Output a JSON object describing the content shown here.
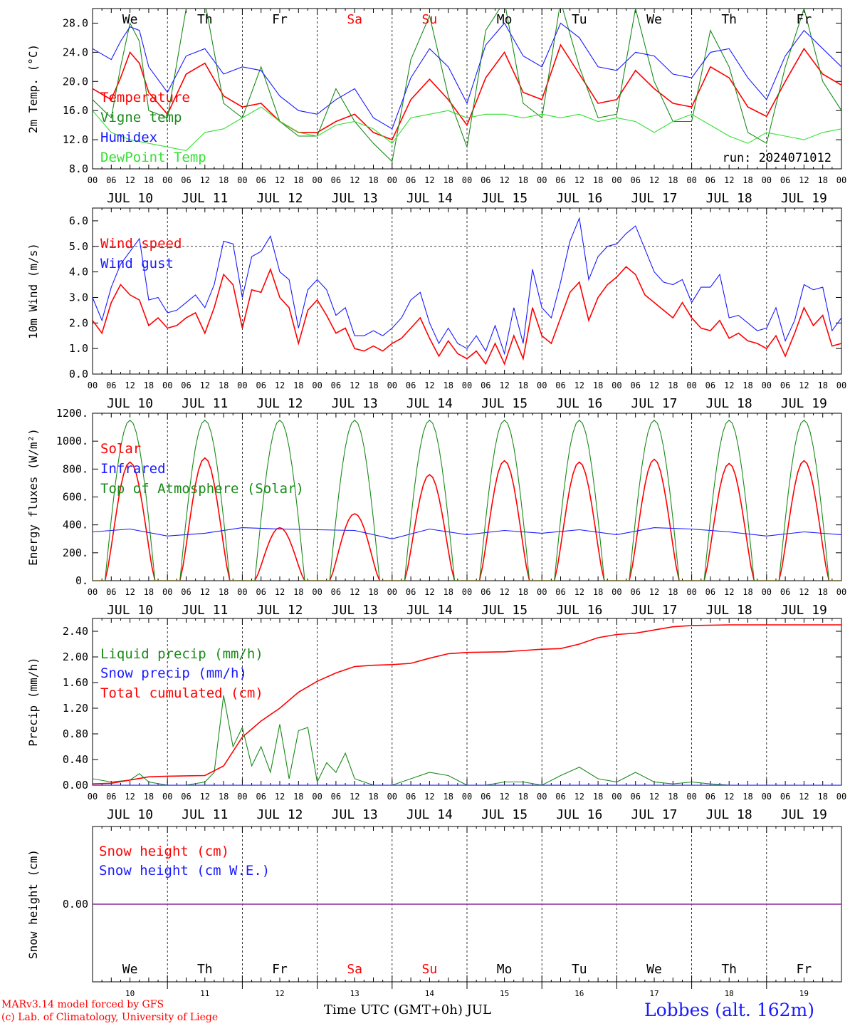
{
  "run_label": "run: 2024071012",
  "day_names": [
    "We",
    "Th",
    "Fr",
    "Sa",
    "Su",
    "Mo",
    "Tu",
    "We",
    "Th",
    "Fr"
  ],
  "weekend_days": [
    3,
    4
  ],
  "date_labels": [
    "JUL 10",
    "JUL 11",
    "JUL 12",
    "JUL 13",
    "JUL 14",
    "JUL 15",
    "JUL 16",
    "JUL 17",
    "JUL 18",
    "JUL 19"
  ],
  "day_numbers": [
    "10",
    "11",
    "12",
    "13",
    "14",
    "15",
    "16",
    "17",
    "18",
    "19"
  ],
  "hour_labels": [
    "00",
    "06",
    "12",
    "18"
  ],
  "footer": {
    "credit1": "MARv3.14 model forced by GFS",
    "credit2": "(c) Lab. of Climatology, University of Liege",
    "xaxis_title": "Time UTC (GMT+0h) JUL",
    "station": "Lobbes (alt. 162m)"
  },
  "colors": {
    "red": "#ff0000",
    "green": "#1a8a1a",
    "blue": "#1a1aff",
    "lightgreen": "#33e033",
    "purple": "#8c2a9c"
  },
  "chart_data": [
    {
      "type": "line",
      "ylabel": "2m Temp. (°C)",
      "ylim": [
        8,
        30
      ],
      "yticks": [
        "8.0",
        "12.0",
        "16.0",
        "20.0",
        "24.0",
        "28.0"
      ],
      "ytick_values": [
        8,
        12,
        16,
        20,
        24,
        28
      ],
      "x_unit": "hours since JUL 10 00 UTC",
      "series": [
        {
          "name": "Temperature",
          "color": "red",
          "x": [
            0,
            6,
            9,
            12,
            15,
            18,
            24,
            30,
            36,
            42,
            48,
            54,
            60,
            66,
            72,
            78,
            84,
            90,
            96,
            102,
            108,
            114,
            120,
            126,
            132,
            138,
            144,
            150,
            156,
            162,
            168,
            174,
            180,
            186,
            192,
            198,
            204,
            210,
            216,
            222,
            228,
            234,
            240
          ],
          "y": [
            19.0,
            17.5,
            20.5,
            24.0,
            22.5,
            18.5,
            15.5,
            21.0,
            22.5,
            18.0,
            16.5,
            17.0,
            14.5,
            13.0,
            13.0,
            14.5,
            15.5,
            13.0,
            12.0,
            17.5,
            20.3,
            17.5,
            14.0,
            20.5,
            24.0,
            18.5,
            17.5,
            25.0,
            21.0,
            17.0,
            17.5,
            21.5,
            19.0,
            17.0,
            16.5,
            22.0,
            20.5,
            16.5,
            15.2,
            20.0,
            24.5,
            21.0,
            19.5
          ]
        },
        {
          "name": "Vigne temp",
          "color": "green",
          "x": [
            0,
            6,
            9,
            12,
            15,
            18,
            24,
            30,
            36,
            42,
            48,
            54,
            60,
            66,
            72,
            78,
            84,
            90,
            96,
            102,
            108,
            114,
            120,
            126,
            132,
            138,
            144,
            150,
            156,
            162,
            168,
            174,
            180,
            186,
            192,
            198,
            204,
            210,
            216,
            222,
            228,
            234,
            240
          ],
          "y": [
            17.5,
            15.0,
            22.0,
            28.0,
            25.5,
            16.0,
            15.0,
            30.0,
            31.0,
            17.0,
            15.0,
            22.0,
            14.5,
            12.5,
            12.5,
            19.0,
            14.5,
            11.5,
            9.0,
            23.0,
            29.0,
            18.0,
            11.0,
            27.0,
            31.0,
            17.0,
            15.0,
            31.0,
            22.0,
            15.0,
            15.5,
            30.0,
            20.0,
            14.5,
            14.5,
            27.0,
            22.0,
            13.0,
            11.5,
            22.0,
            30.0,
            20.0,
            16.0
          ]
        },
        {
          "name": "Humidex",
          "color": "blue",
          "x": [
            0,
            6,
            9,
            12,
            15,
            18,
            24,
            30,
            36,
            42,
            48,
            54,
            60,
            66,
            72,
            78,
            84,
            90,
            96,
            102,
            108,
            114,
            120,
            126,
            132,
            138,
            144,
            150,
            156,
            162,
            168,
            174,
            180,
            186,
            192,
            198,
            204,
            210,
            216,
            222,
            228,
            234,
            240
          ],
          "y": [
            24.5,
            23.0,
            25.5,
            27.5,
            27.0,
            22.0,
            18.5,
            23.5,
            24.5,
            21.0,
            22.0,
            21.5,
            18.0,
            16.0,
            15.5,
            17.5,
            19.0,
            15.0,
            13.5,
            20.5,
            24.5,
            22.0,
            17.0,
            25.0,
            28.0,
            23.5,
            22.0,
            28.0,
            26.0,
            22.0,
            21.5,
            24.0,
            23.5,
            21.0,
            20.5,
            24.0,
            24.5,
            20.5,
            17.5,
            23.5,
            27.0,
            24.5,
            22.0
          ]
        },
        {
          "name": "DewPoint Temp",
          "color": "lightgreen",
          "x": [
            0,
            6,
            12,
            18,
            24,
            30,
            36,
            42,
            48,
            54,
            60,
            66,
            72,
            78,
            84,
            90,
            96,
            102,
            108,
            114,
            120,
            126,
            132,
            138,
            144,
            150,
            156,
            162,
            168,
            174,
            180,
            186,
            192,
            198,
            204,
            210,
            216,
            222,
            228,
            234,
            240
          ],
          "y": [
            16.0,
            13.0,
            12.0,
            11.5,
            11.0,
            10.5,
            13.0,
            13.5,
            15.0,
            16.5,
            14.5,
            13.0,
            12.5,
            14.0,
            14.5,
            13.5,
            11.5,
            15.0,
            15.5,
            16.0,
            15.0,
            15.5,
            15.5,
            15.0,
            15.5,
            15.0,
            15.5,
            14.5,
            15.0,
            14.5,
            13.0,
            14.5,
            15.5,
            14.0,
            12.5,
            11.5,
            13.0,
            12.5,
            12.0,
            13.0,
            13.5
          ]
        }
      ]
    },
    {
      "type": "line",
      "ylabel": "10m Wind (m/s)",
      "ylim": [
        0,
        6.5
      ],
      "yticks": [
        "0.0",
        "1.0",
        "2.0",
        "3.0",
        "4.0",
        "5.0",
        "6.0"
      ],
      "ytick_values": [
        0,
        1,
        2,
        3,
        4,
        5,
        6
      ],
      "ref_line": 5.0,
      "series": [
        {
          "name": "Wind speed",
          "color": "red",
          "x": [
            0,
            3,
            6,
            9,
            12,
            15,
            18,
            21,
            24,
            27,
            30,
            33,
            36,
            39,
            42,
            45,
            48,
            51,
            54,
            57,
            60,
            63,
            66,
            69,
            72,
            75,
            78,
            81,
            84,
            87,
            90,
            93,
            96,
            99,
            102,
            105,
            108,
            111,
            114,
            117,
            120,
            123,
            126,
            129,
            132,
            135,
            138,
            141,
            144,
            147,
            150,
            153,
            156,
            159,
            162,
            165,
            168,
            171,
            174,
            177,
            180,
            183,
            186,
            189,
            192,
            195,
            198,
            201,
            204,
            207,
            210,
            213,
            216,
            219,
            222,
            225,
            228,
            231,
            234,
            237,
            240
          ],
          "y": [
            2.1,
            1.6,
            2.8,
            3.5,
            3.1,
            2.9,
            1.9,
            2.2,
            1.8,
            1.9,
            2.2,
            2.4,
            1.6,
            2.6,
            3.9,
            3.5,
            1.8,
            3.3,
            3.2,
            4.1,
            3.0,
            2.6,
            1.2,
            2.5,
            2.9,
            2.3,
            1.6,
            1.8,
            1.0,
            0.9,
            1.1,
            0.9,
            1.2,
            1.4,
            1.8,
            2.2,
            1.4,
            0.7,
            1.3,
            0.8,
            0.6,
            0.9,
            0.4,
            1.2,
            0.4,
            1.5,
            0.6,
            2.6,
            1.5,
            1.2,
            2.2,
            3.2,
            3.6,
            2.1,
            3.0,
            3.5,
            3.8,
            4.2,
            3.9,
            3.1,
            2.8,
            2.5,
            2.2,
            2.8,
            2.2,
            1.8,
            1.7,
            2.1,
            1.4,
            1.6,
            1.3,
            1.2,
            1.0,
            1.5,
            0.7,
            1.6,
            2.6,
            1.9,
            2.3,
            1.1,
            1.2
          ]
        },
        {
          "name": "Wind gust",
          "color": "blue",
          "x": [
            0,
            3,
            6,
            9,
            12,
            15,
            18,
            21,
            24,
            27,
            30,
            33,
            36,
            39,
            42,
            45,
            48,
            51,
            54,
            57,
            60,
            63,
            66,
            69,
            72,
            75,
            78,
            81,
            84,
            87,
            90,
            93,
            96,
            99,
            102,
            105,
            108,
            111,
            114,
            117,
            120,
            123,
            126,
            129,
            132,
            135,
            138,
            141,
            144,
            147,
            150,
            153,
            156,
            159,
            162,
            165,
            168,
            171,
            174,
            177,
            180,
            183,
            186,
            189,
            192,
            195,
            198,
            201,
            204,
            207,
            210,
            213,
            216,
            219,
            222,
            225,
            228,
            231,
            234,
            237,
            240
          ],
          "y": [
            3.0,
            2.1,
            3.4,
            4.3,
            4.8,
            5.3,
            2.9,
            3.0,
            2.4,
            2.5,
            2.8,
            3.1,
            2.6,
            3.5,
            5.2,
            5.1,
            3.0,
            4.6,
            4.8,
            5.4,
            4.0,
            3.7,
            1.8,
            3.3,
            3.7,
            3.3,
            2.3,
            2.6,
            1.5,
            1.5,
            1.7,
            1.5,
            1.8,
            2.2,
            2.9,
            3.2,
            2.0,
            1.2,
            1.8,
            1.2,
            1.0,
            1.5,
            0.9,
            1.9,
            0.8,
            2.6,
            1.2,
            4.1,
            2.6,
            2.2,
            3.6,
            5.2,
            6.1,
            3.7,
            4.6,
            5.0,
            5.1,
            5.5,
            5.8,
            4.9,
            4.0,
            3.6,
            3.5,
            3.7,
            2.8,
            3.4,
            3.4,
            3.9,
            2.2,
            2.3,
            2.0,
            1.7,
            1.8,
            2.6,
            1.3,
            2.1,
            3.5,
            3.3,
            3.4,
            1.7,
            2.2
          ]
        }
      ]
    },
    {
      "type": "line",
      "ylabel": "Energy fluxes (W/m²)",
      "ylim": [
        0,
        1200
      ],
      "yticks": [
        "0.",
        "200.",
        "400.",
        "600.",
        "800.",
        "1000.",
        "1200."
      ],
      "ytick_values": [
        0,
        200,
        400,
        600,
        800,
        1000,
        1200
      ],
      "solar_peaks": [
        850,
        880,
        380,
        480,
        760,
        860,
        850,
        870,
        840,
        860
      ],
      "toa_peak": 1150,
      "series": [
        {
          "name": "Solar",
          "color": "red",
          "x": [],
          "y": []
        },
        {
          "name": "Infrared",
          "color": "blue",
          "x": [
            0,
            12,
            24,
            36,
            48,
            60,
            72,
            84,
            96,
            108,
            120,
            132,
            144,
            156,
            168,
            180,
            192,
            204,
            216,
            228,
            240
          ],
          "y": [
            350,
            370,
            320,
            340,
            380,
            370,
            365,
            360,
            300,
            370,
            330,
            360,
            340,
            365,
            330,
            380,
            370,
            350,
            320,
            350,
            330
          ]
        },
        {
          "name": "Top of Atmosphere (Solar)",
          "color": "green",
          "x": [],
          "y": []
        }
      ]
    },
    {
      "type": "line",
      "ylabel": "Precip (mm/h)",
      "ylim": [
        0,
        2.6
      ],
      "yticks": [
        "0.00",
        "0.40",
        "0.80",
        "1.20",
        "1.60",
        "2.00",
        "2.40"
      ],
      "ytick_values": [
        0,
        0.4,
        0.8,
        1.2,
        1.6,
        2.0,
        2.4
      ],
      "series": [
        {
          "name": "Liquid precip (mm/h)",
          "color": "green",
          "x": [
            0,
            6,
            12,
            15,
            18,
            24,
            30,
            36,
            39,
            42,
            45,
            48,
            51,
            54,
            57,
            60,
            63,
            66,
            69,
            72,
            75,
            78,
            81,
            84,
            87,
            90,
            96,
            102,
            108,
            114,
            120,
            126,
            132,
            138,
            144,
            150,
            156,
            162,
            168,
            174,
            180,
            186,
            192,
            198,
            204,
            216,
            228,
            240
          ],
          "y": [
            0.1,
            0.05,
            0.08,
            0.18,
            0.05,
            0,
            0,
            0.05,
            0.2,
            1.4,
            0.6,
            0.9,
            0.3,
            0.6,
            0.2,
            0.95,
            0.1,
            0.85,
            0.9,
            0.05,
            0.35,
            0.2,
            0.5,
            0.1,
            0.05,
            0,
            0,
            0.1,
            0.2,
            0.15,
            0,
            0,
            0.05,
            0.05,
            0,
            0.15,
            0.28,
            0.1,
            0.05,
            0.2,
            0.05,
            0.02,
            0.05,
            0.02,
            0,
            0,
            0,
            0
          ]
        },
        {
          "name": "Snow precip (mm/h)",
          "color": "blue",
          "x": [
            0,
            240
          ],
          "y": [
            0,
            0
          ]
        },
        {
          "name": "Total cumulated (cm)",
          "color": "red",
          "x": [
            0,
            6,
            12,
            18,
            24,
            36,
            42,
            48,
            54,
            60,
            66,
            72,
            78,
            84,
            90,
            96,
            102,
            108,
            114,
            120,
            132,
            138,
            144,
            150,
            156,
            162,
            168,
            174,
            180,
            186,
            192,
            204,
            216,
            228,
            240
          ],
          "y": [
            0.02,
            0.03,
            0.08,
            0.13,
            0.14,
            0.15,
            0.3,
            0.75,
            1.0,
            1.2,
            1.45,
            1.62,
            1.75,
            1.85,
            1.87,
            1.88,
            1.9,
            1.98,
            2.05,
            2.07,
            2.08,
            2.1,
            2.12,
            2.13,
            2.2,
            2.3,
            2.35,
            2.37,
            2.42,
            2.47,
            2.49,
            2.5,
            2.5,
            2.5,
            2.5
          ]
        }
      ]
    },
    {
      "type": "line",
      "ylabel": "Snow height (cm)",
      "ylim": [
        -1,
        1
      ],
      "yticks": [
        "0.00"
      ],
      "ytick_values": [
        0
      ],
      "series": [
        {
          "name": "Snow height (cm)",
          "color": "red",
          "x": [
            0,
            240
          ],
          "y": [
            0,
            0
          ]
        },
        {
          "name": "Snow height (cm W.E.)",
          "color": "blue",
          "x": [
            0,
            240
          ],
          "y": [
            0,
            0
          ]
        }
      ]
    }
  ]
}
